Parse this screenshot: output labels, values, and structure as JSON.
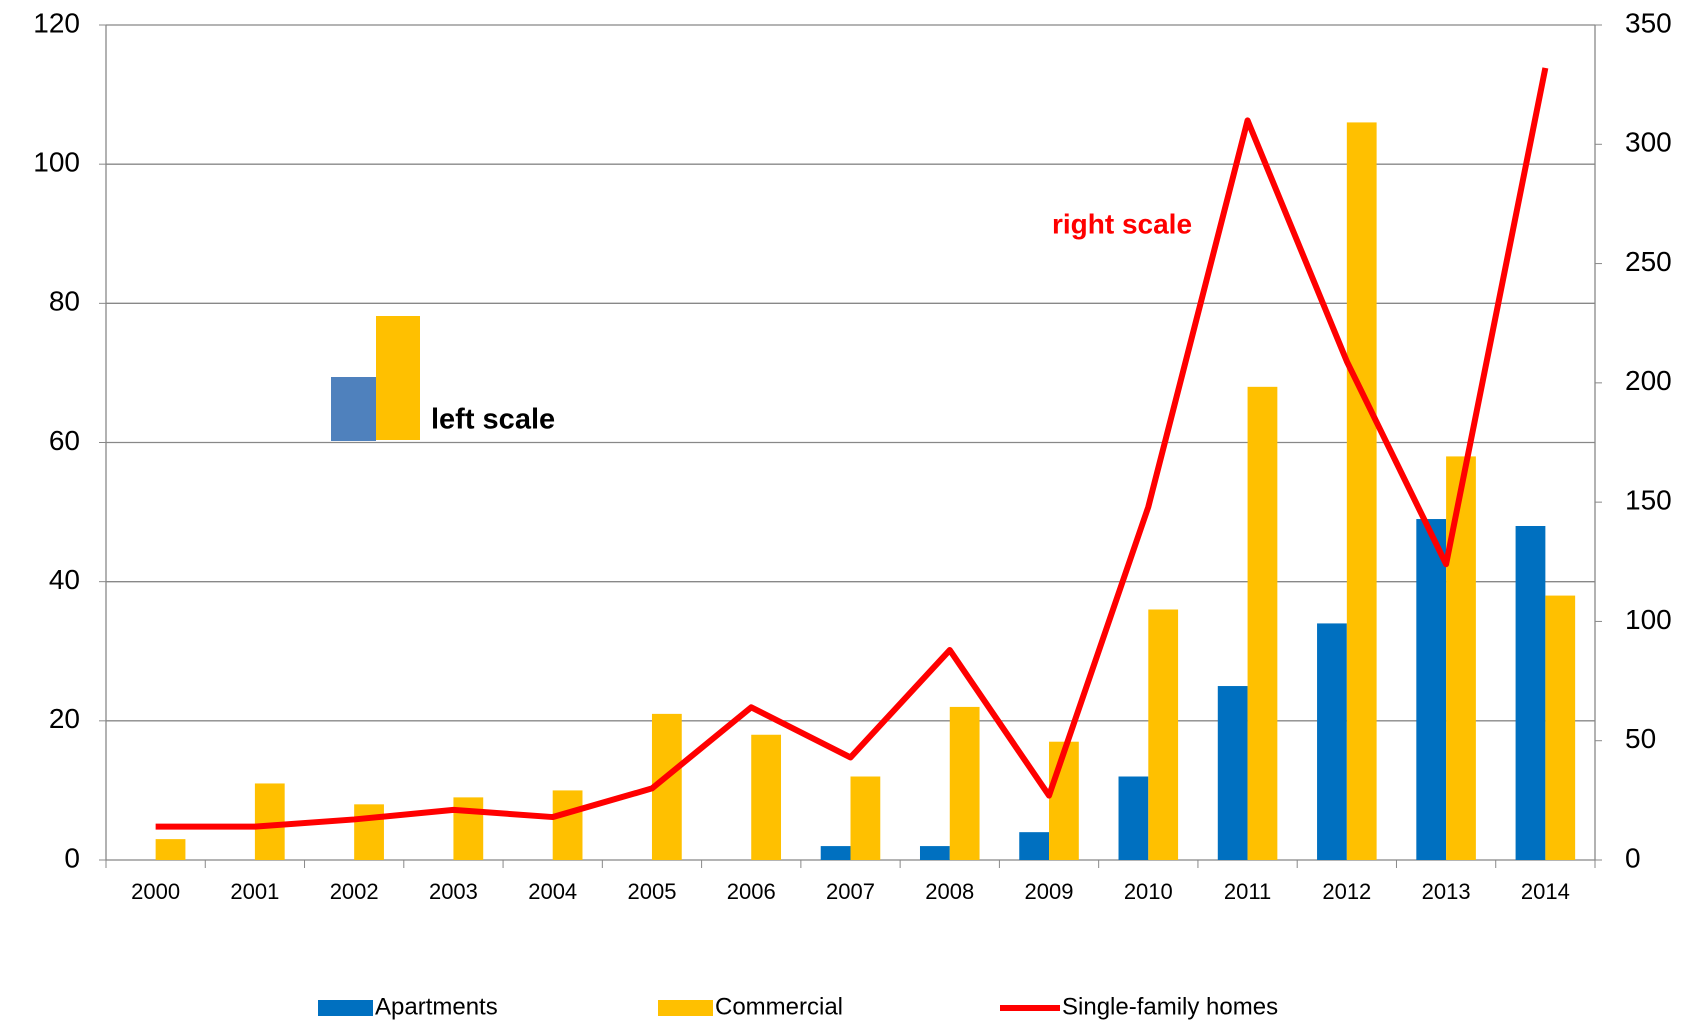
{
  "chart_data": {
    "type": "bar",
    "categories": [
      "2000",
      "2001",
      "2002",
      "2003",
      "2004",
      "2005",
      "2006",
      "2007",
      "2008",
      "2009",
      "2010",
      "2011",
      "2012",
      "2013",
      "2014"
    ],
    "series": [
      {
        "name": "Apartments",
        "color": "#0070c0",
        "type": "bar",
        "values": [
          0,
          0,
          0,
          0,
          0,
          0,
          0,
          2,
          2,
          4,
          12,
          25,
          34,
          49,
          48
        ]
      },
      {
        "name": "Commercial",
        "color": "#ffc000",
        "type": "bar",
        "values": [
          3,
          11,
          8,
          9,
          10,
          21,
          18,
          12,
          22,
          17,
          36,
          68,
          106,
          58,
          38
        ]
      },
      {
        "name": "Single-family homes",
        "color": "#ff0000",
        "type": "line",
        "axis": "y2",
        "values": [
          14,
          14,
          17,
          21,
          18,
          30,
          64,
          43,
          88,
          27,
          148,
          310,
          209,
          124,
          332
        ]
      }
    ],
    "ylim": [
      0,
      120
    ],
    "yticks": [
      0,
      20,
      40,
      60,
      80,
      100,
      120
    ],
    "y2lim": [
      0,
      350
    ],
    "y2ticks": [
      0,
      50,
      100,
      150,
      200,
      250,
      300,
      350
    ],
    "grid": true,
    "annotations": [
      "right scale",
      "left scale"
    ],
    "legend": "bottom"
  }
}
